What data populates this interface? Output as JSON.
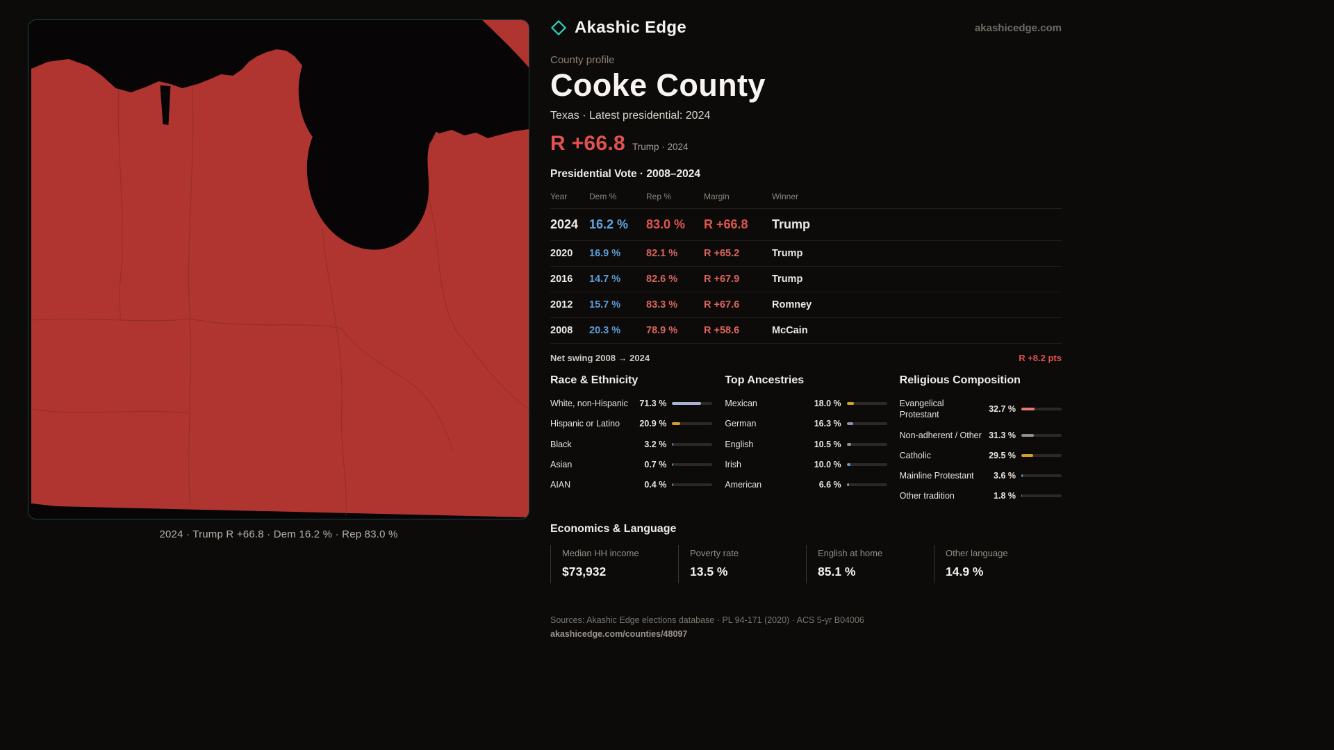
{
  "colors": {
    "accent_teal": "#2bd4c0",
    "dem_blue": "#5b9dd6",
    "rep_red": "#e05250",
    "gold": "#d4a02c",
    "map_red": "#b03531"
  },
  "header": {
    "brand": "Akashic Edge",
    "site": "akashicedge.com"
  },
  "map": {
    "caption": "2024 · Trump R +66.8 · Dem 16.2 % · Rep 83.0 %"
  },
  "profile": {
    "eyebrow": "County profile",
    "title": "Cooke County",
    "subtitle": "Texas · Latest presidential: 2024",
    "margin_big": "R +66.8",
    "margin_note": "Trump · 2024"
  },
  "vote_table": {
    "title": "Presidential Vote · 2008–2024",
    "columns": [
      "Year",
      "Dem %",
      "Rep %",
      "Margin",
      "Winner"
    ],
    "rows": [
      {
        "year": "2024",
        "dem": "16.2 %",
        "rep": "83.0 %",
        "margin": "R +66.8",
        "winner": "Trump"
      },
      {
        "year": "2020",
        "dem": "16.9 %",
        "rep": "82.1 %",
        "margin": "R +65.2",
        "winner": "Trump"
      },
      {
        "year": "2016",
        "dem": "14.7 %",
        "rep": "82.6 %",
        "margin": "R +67.9",
        "winner": "Trump"
      },
      {
        "year": "2012",
        "dem": "15.7 %",
        "rep": "83.3 %",
        "margin": "R +67.6",
        "winner": "Romney"
      },
      {
        "year": "2008",
        "dem": "20.3 %",
        "rep": "78.9 %",
        "margin": "R +58.6",
        "winner": "McCain"
      }
    ],
    "net_swing_label": "Net swing 2008 → 2024",
    "net_swing_value": "R +8.2 pts"
  },
  "demographics": [
    {
      "title": "Race & Ethnicity",
      "rows": [
        {
          "label": "White, non-Hispanic",
          "value": "71.3 %",
          "pct": 71.3,
          "color": "#a9b4d4"
        },
        {
          "label": "Hispanic or Latino",
          "value": "20.9 %",
          "pct": 20.9,
          "color": "#d4a02c"
        },
        {
          "label": "Black",
          "value": "3.2 %",
          "pct": 3.2,
          "color": "#7b7fd0"
        },
        {
          "label": "Asian",
          "value": "0.7 %",
          "pct": 0.7,
          "color": "#46a578"
        },
        {
          "label": "AIAN",
          "value": "0.4 %",
          "pct": 0.4,
          "color": "#8a847e"
        }
      ]
    },
    {
      "title": "Top Ancestries",
      "rows": [
        {
          "label": "Mexican",
          "value": "18.0 %",
          "pct": 18.0,
          "color": "#d4a02c"
        },
        {
          "label": "German",
          "value": "16.3 %",
          "pct": 16.3,
          "color": "#8a93a8"
        },
        {
          "label": "English",
          "value": "10.5 %",
          "pct": 10.5,
          "color": "#9b948d"
        },
        {
          "label": "Irish",
          "value": "10.0 %",
          "pct": 10.0,
          "color": "#5b9dd6"
        },
        {
          "label": "American",
          "value": "6.6 %",
          "pct": 6.6,
          "color": "#9b948d"
        }
      ]
    },
    {
      "title": "Religious Composition",
      "rows": [
        {
          "label": "Evangelical Protestant",
          "value": "32.7 %",
          "pct": 32.7,
          "color": "#e57a72"
        },
        {
          "label": "Non-adherent / Other",
          "value": "31.3 %",
          "pct": 31.3,
          "color": "#938d86"
        },
        {
          "label": "Catholic",
          "value": "29.5 %",
          "pct": 29.5,
          "color": "#d4a02c"
        },
        {
          "label": "Mainline Protestant",
          "value": "3.6 %",
          "pct": 3.6,
          "color": "#5b9dd6"
        },
        {
          "label": "Other tradition",
          "value": "1.8 %",
          "pct": 1.8,
          "color": "#938d86"
        }
      ]
    }
  ],
  "economics": {
    "title": "Economics & Language",
    "stats": [
      {
        "label": "Median HH income",
        "value": "$73,932"
      },
      {
        "label": "Poverty rate",
        "value": "13.5 %"
      },
      {
        "label": "English at home",
        "value": "85.1 %"
      },
      {
        "label": "Other language",
        "value": "14.9 %"
      }
    ]
  },
  "footer": {
    "sources": "Sources: Akashic Edge elections database · PL 94-171 (2020) · ACS 5-yr B04006",
    "permalink": "akashicedge.com/counties/48097"
  }
}
